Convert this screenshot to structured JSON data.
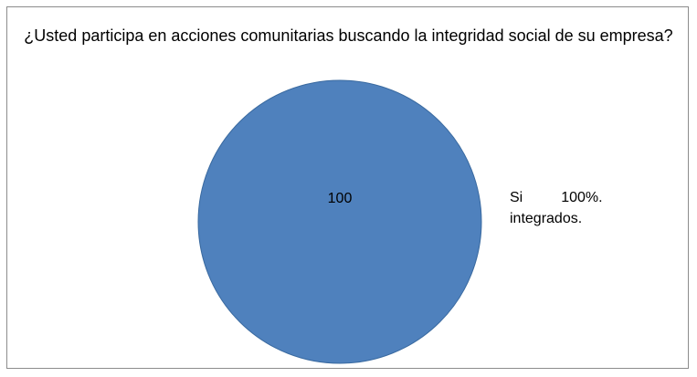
{
  "chart_data": {
    "type": "pie",
    "title": "¿Usted participa en acciones comunitarias buscando la integridad social de su empresa?",
    "slices": [
      {
        "label": "Si",
        "value": 100,
        "data_label": "100",
        "percent_label": "100%.",
        "note": "integrados.",
        "color": "#4F81BD"
      }
    ],
    "legend": "right"
  }
}
